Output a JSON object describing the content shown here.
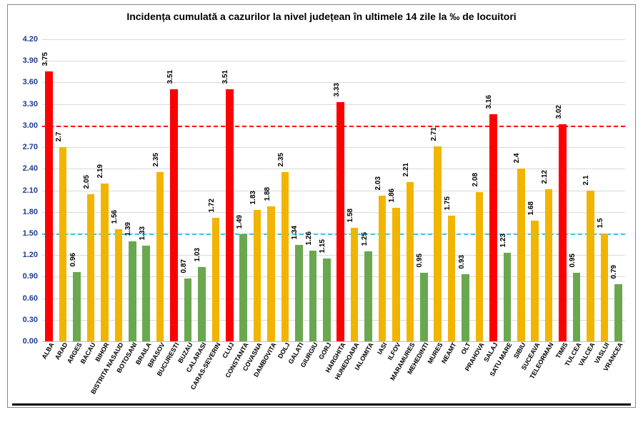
{
  "chart": {
    "type": "bar",
    "title": "Incidența cumulată a cazurilor la nivel județean în ultimele 14 zile la ‰ de locuitori",
    "title_fontsize": 14,
    "ylim": [
      0,
      4.2
    ],
    "ytick_step": 0.3,
    "ytick_decimals": 2,
    "y_label_fontsize": 11,
    "y_label_color": "#1f3b8f",
    "grid_color": "#d9d9d9",
    "axis_color": "#bfbfbf",
    "background_color": "#ffffff",
    "bar_width_ratio": 0.55,
    "value_label_fontsize": 10,
    "x_label_fontsize": 9,
    "thresholds": [
      {
        "value": 1.5,
        "color": "#33c6f4"
      },
      {
        "value": 3.0,
        "color": "#ff0000"
      }
    ],
    "categories": [
      "ALBA",
      "ARAD",
      "ARGES",
      "BACAU",
      "BIHOR",
      "BISTRITA NASAUD",
      "BOTOSANI",
      "BRAILA",
      "BRASOV",
      "BUCURESTI",
      "BUZAU",
      "CALARASI",
      "CARAS-SEVERIN",
      "CLUJ",
      "CONSTANTA",
      "COVASNA",
      "DAMBOVITA",
      "DOLJ",
      "GALATI",
      "GIURGIU",
      "GORJ",
      "HARGHITA",
      "HUNEDOARA",
      "IALOMITA",
      "IASI",
      "ILFOV",
      "MARAMURES",
      "MEHEDINTI",
      "MURES",
      "NEAMT",
      "OLT",
      "PRAHOVA",
      "SALAJ",
      "SATU MARE",
      "SIBIU",
      "SUCEAVA",
      "TELEORMAN",
      "TIMIS",
      "TULCEA",
      "VALCEA",
      "VASLUI",
      "VRANCEA"
    ],
    "values": [
      3.75,
      2.7,
      0.96,
      2.05,
      2.19,
      1.56,
      1.39,
      1.33,
      2.35,
      3.51,
      0.87,
      1.03,
      1.72,
      3.51,
      1.49,
      1.83,
      1.88,
      2.35,
      1.34,
      1.26,
      1.15,
      3.33,
      1.58,
      1.25,
      2.03,
      1.86,
      2.21,
      0.95,
      2.71,
      1.75,
      0.93,
      2.08,
      3.16,
      1.23,
      2.4,
      1.68,
      2.12,
      3.02,
      0.95,
      2.1,
      1.5,
      0.79
    ],
    "value_labels": [
      "3.75",
      "2.7",
      "0.96",
      "2.05",
      "2.19",
      "1.56",
      "1.39",
      "1.33",
      "2.35",
      "3.51",
      "0.87",
      "1.03",
      "1.72",
      "3.51",
      "1.49",
      "1.83",
      "1.88",
      "2.35",
      "1.34",
      "1.26",
      "1.15",
      "3.33",
      "1.58",
      "1.25",
      "2.03",
      "1.86",
      "2.21",
      "0.95",
      "2.71",
      "1.75",
      "0.93",
      "2.08",
      "3.16",
      "1.23",
      "2.4",
      "1.68",
      "2.12",
      "3.02",
      "0.95",
      "2.1",
      "1.5",
      "0.79"
    ],
    "color_low": "#6aa84f",
    "color_mid": "#f1b400",
    "color_high": "#ff0000"
  }
}
